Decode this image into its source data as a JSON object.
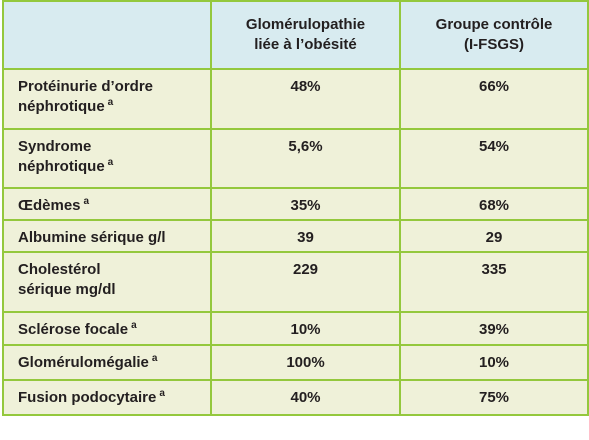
{
  "table": {
    "headers": [
      "",
      "Glomérulopathie\nliée à l’obésité",
      "Groupe contrôle\n(I-FSGS)"
    ],
    "rows": [
      {
        "label": "Protéinurie d’ordre\nnéphrotique",
        "note": "a",
        "cells": [
          "48%",
          "66%"
        ]
      },
      {
        "label": "Syndrome\nnéphrotique",
        "note": "a",
        "cells": [
          "5,6%",
          "54%"
        ]
      },
      {
        "label": "Œdèmes",
        "note": "a",
        "cells": [
          "35%",
          "68%"
        ]
      },
      {
        "label": "Albumine sérique g/l",
        "note": null,
        "cells": [
          "39",
          "29"
        ]
      },
      {
        "label": "Cholestérol\nsérique mg/dl",
        "note": null,
        "cells": [
          "229",
          "335"
        ]
      },
      {
        "label": "Sclérose focale",
        "note": "a",
        "cells": [
          "10%",
          "39%"
        ]
      },
      {
        "label": "Glomérulomégalie",
        "note": "a",
        "cells": [
          "100%",
          "10%"
        ]
      },
      {
        "label": "Fusion podocytaire",
        "note": "a",
        "cells": [
          "40%",
          "75%"
        ]
      }
    ]
  }
}
